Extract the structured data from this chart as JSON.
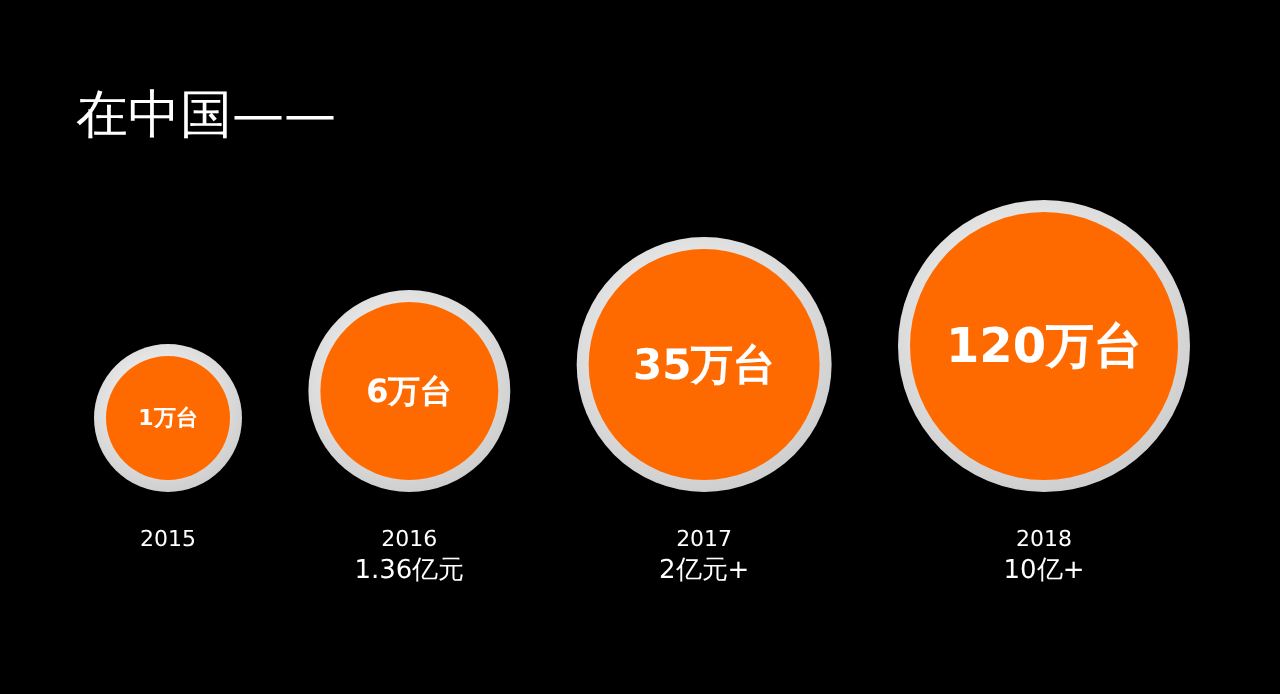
{
  "chart_data": {
    "type": "other",
    "title": "在中国——",
    "categories": [
      "2015",
      "2016",
      "2017",
      "2018"
    ],
    "values": [
      1,
      6,
      35,
      120
    ],
    "value_labels": [
      "1万台",
      "6万台",
      "35万台",
      "120万台"
    ],
    "color": "#ff6a00",
    "annotations": [
      "1.36亿元",
      "2亿元+",
      "10亿+"
    ]
  }
}
